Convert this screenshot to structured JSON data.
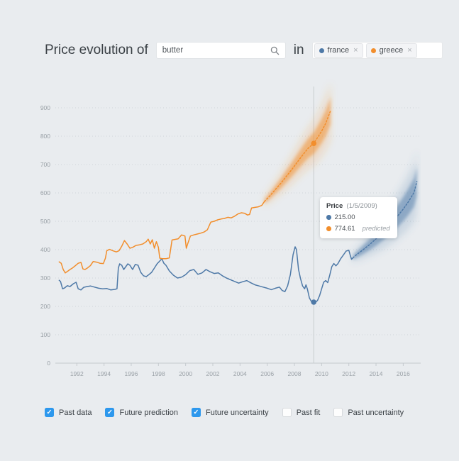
{
  "header": {
    "title": "Price evolution of",
    "search": {
      "value": "butter"
    },
    "preposition": "in",
    "tags": [
      {
        "label": "france",
        "color": "#4e79a7",
        "remove": "×"
      },
      {
        "label": "greece",
        "color": "#f28e2c",
        "remove": "×"
      }
    ]
  },
  "tooltip": {
    "title": "Price",
    "date": "(1/5/2009)",
    "rows": [
      {
        "color": "#4e79a7",
        "value": "215.00",
        "note": ""
      },
      {
        "color": "#f28e2c",
        "value": "774.61",
        "note": "predicted"
      }
    ]
  },
  "controls": [
    {
      "label": "Past data",
      "checked": true
    },
    {
      "label": "Future prediction",
      "checked": true
    },
    {
      "label": "Future uncertainty",
      "checked": true
    },
    {
      "label": "Past fit",
      "checked": false
    },
    {
      "label": "Past uncertainty",
      "checked": false
    }
  ],
  "chart_data": {
    "type": "line",
    "title": "",
    "xlabel": "",
    "ylabel": "",
    "grid": "dotted-horizontal",
    "x_ticks": [
      1992,
      1994,
      1996,
      1998,
      2000,
      2002,
      2004,
      2006,
      2008,
      2010,
      2012,
      2014,
      2016
    ],
    "y_ticks": [
      0,
      100,
      200,
      300,
      400,
      500,
      600,
      700,
      800,
      900
    ],
    "x_range": [
      1990.5,
      2017.3
    ],
    "y_range": [
      0,
      985
    ],
    "hover_x": 2009.42,
    "hover_date": "1/5/2009",
    "series": [
      {
        "name": "france-past",
        "color": "#4e79a7",
        "style": "solid",
        "points": [
          [
            1990.7,
            292
          ],
          [
            1990.8,
            288
          ],
          [
            1990.95,
            262
          ],
          [
            1991.1,
            265
          ],
          [
            1991.3,
            273
          ],
          [
            1991.5,
            270
          ],
          [
            1991.75,
            280
          ],
          [
            1991.95,
            285
          ],
          [
            1992.1,
            262
          ],
          [
            1992.3,
            258
          ],
          [
            1992.5,
            267
          ],
          [
            1992.75,
            270
          ],
          [
            1993.0,
            272
          ],
          [
            1993.3,
            268
          ],
          [
            1993.6,
            264
          ],
          [
            1993.9,
            262
          ],
          [
            1994.2,
            263
          ],
          [
            1994.5,
            258
          ],
          [
            1994.8,
            260
          ],
          [
            1994.95,
            262
          ],
          [
            1995.05,
            335
          ],
          [
            1995.15,
            350
          ],
          [
            1995.3,
            345
          ],
          [
            1995.45,
            330
          ],
          [
            1995.6,
            340
          ],
          [
            1995.75,
            350
          ],
          [
            1995.9,
            345
          ],
          [
            1996.1,
            330
          ],
          [
            1996.3,
            348
          ],
          [
            1996.5,
            345
          ],
          [
            1996.7,
            320
          ],
          [
            1996.9,
            308
          ],
          [
            1997.1,
            305
          ],
          [
            1997.3,
            312
          ],
          [
            1997.5,
            320
          ],
          [
            1997.7,
            335
          ],
          [
            1997.9,
            350
          ],
          [
            1998.1,
            360
          ],
          [
            1998.25,
            368
          ],
          [
            1998.4,
            352
          ],
          [
            1998.55,
            345
          ],
          [
            1998.8,
            325
          ],
          [
            1999.1,
            310
          ],
          [
            1999.4,
            300
          ],
          [
            1999.7,
            303
          ],
          [
            2000.0,
            312
          ],
          [
            2000.3,
            326
          ],
          [
            2000.6,
            330
          ],
          [
            2000.9,
            313
          ],
          [
            2001.2,
            318
          ],
          [
            2001.5,
            330
          ],
          [
            2001.8,
            322
          ],
          [
            2002.1,
            316
          ],
          [
            2002.4,
            318
          ],
          [
            2002.7,
            308
          ],
          [
            2003.0,
            300
          ],
          [
            2003.3,
            294
          ],
          [
            2003.6,
            288
          ],
          [
            2003.9,
            282
          ],
          [
            2004.2,
            287
          ],
          [
            2004.5,
            291
          ],
          [
            2004.8,
            283
          ],
          [
            2005.1,
            276
          ],
          [
            2005.4,
            272
          ],
          [
            2005.7,
            268
          ],
          [
            2006.0,
            264
          ],
          [
            2006.3,
            259
          ],
          [
            2006.6,
            264
          ],
          [
            2006.9,
            268
          ],
          [
            2007.1,
            256
          ],
          [
            2007.3,
            252
          ],
          [
            2007.5,
            272
          ],
          [
            2007.7,
            312
          ],
          [
            2007.9,
            382
          ],
          [
            2008.05,
            410
          ],
          [
            2008.15,
            400
          ],
          [
            2008.3,
            330
          ],
          [
            2008.45,
            298
          ],
          [
            2008.6,
            272
          ],
          [
            2008.75,
            262
          ],
          [
            2008.85,
            276
          ],
          [
            2008.95,
            262
          ],
          [
            2009.1,
            230
          ],
          [
            2009.25,
            217
          ],
          [
            2009.37,
            215
          ],
          [
            2009.55,
            214
          ],
          [
            2009.7,
            221
          ],
          [
            2009.85,
            238
          ],
          [
            2010.0,
            262
          ],
          [
            2010.15,
            285
          ],
          [
            2010.3,
            291
          ],
          [
            2010.45,
            284
          ],
          [
            2010.6,
            311
          ],
          [
            2010.75,
            340
          ],
          [
            2010.9,
            351
          ],
          [
            2011.05,
            343
          ],
          [
            2011.2,
            351
          ],
          [
            2011.4,
            368
          ],
          [
            2011.6,
            381
          ],
          [
            2011.8,
            395
          ],
          [
            2012.0,
            398
          ],
          [
            2012.1,
            381
          ],
          [
            2012.2,
            366
          ],
          [
            2012.3,
            371
          ]
        ]
      },
      {
        "name": "france-prediction",
        "color": "#4e79a7",
        "style": "dotted",
        "band_inner": [
          8,
          52
        ],
        "band_outer": [
          16,
          108
        ],
        "points": [
          [
            2012.3,
            371
          ],
          [
            2012.5,
            380
          ],
          [
            2013.0,
            398
          ],
          [
            2013.5,
            417
          ],
          [
            2014.0,
            438
          ],
          [
            2014.5,
            461
          ],
          [
            2015.0,
            486
          ],
          [
            2015.5,
            513
          ],
          [
            2016.0,
            543
          ],
          [
            2016.4,
            570
          ],
          [
            2016.8,
            602
          ],
          [
            2017.0,
            640
          ]
        ]
      },
      {
        "name": "greece-past",
        "color": "#f28e2c",
        "style": "solid",
        "points": [
          [
            1990.7,
            357
          ],
          [
            1990.85,
            352
          ],
          [
            1991.0,
            330
          ],
          [
            1991.15,
            318
          ],
          [
            1991.3,
            323
          ],
          [
            1991.5,
            330
          ],
          [
            1991.7,
            336
          ],
          [
            1991.9,
            344
          ],
          [
            1992.1,
            352
          ],
          [
            1992.3,
            355
          ],
          [
            1992.45,
            332
          ],
          [
            1992.6,
            330
          ],
          [
            1992.8,
            336
          ],
          [
            1993.0,
            344
          ],
          [
            1993.2,
            358
          ],
          [
            1993.45,
            356
          ],
          [
            1993.7,
            352
          ],
          [
            1993.95,
            351
          ],
          [
            1994.1,
            370
          ],
          [
            1994.2,
            396
          ],
          [
            1994.4,
            401
          ],
          [
            1994.65,
            396
          ],
          [
            1994.9,
            392
          ],
          [
            1995.1,
            396
          ],
          [
            1995.3,
            412
          ],
          [
            1995.5,
            432
          ],
          [
            1995.7,
            420
          ],
          [
            1995.9,
            405
          ],
          [
            1996.1,
            408
          ],
          [
            1996.35,
            415
          ],
          [
            1996.6,
            417
          ],
          [
            1996.85,
            420
          ],
          [
            1997.1,
            428
          ],
          [
            1997.25,
            437
          ],
          [
            1997.4,
            420
          ],
          [
            1997.55,
            435
          ],
          [
            1997.7,
            405
          ],
          [
            1997.85,
            428
          ],
          [
            1998.0,
            408
          ],
          [
            1998.1,
            370
          ],
          [
            1998.3,
            368
          ],
          [
            1998.55,
            368
          ],
          [
            1998.8,
            371
          ],
          [
            1999.0,
            434
          ],
          [
            1999.2,
            436
          ],
          [
            1999.45,
            438
          ],
          [
            1999.7,
            452
          ],
          [
            1999.95,
            448
          ],
          [
            2000.05,
            405
          ],
          [
            2000.15,
            420
          ],
          [
            2000.35,
            448
          ],
          [
            2000.6,
            452
          ],
          [
            2000.85,
            455
          ],
          [
            2001.1,
            458
          ],
          [
            2001.35,
            462
          ],
          [
            2001.6,
            470
          ],
          [
            2001.85,
            497
          ],
          [
            2002.1,
            500
          ],
          [
            2002.35,
            505
          ],
          [
            2002.6,
            508
          ],
          [
            2002.85,
            510
          ],
          [
            2003.1,
            514
          ],
          [
            2003.35,
            512
          ],
          [
            2003.6,
            518
          ],
          [
            2003.85,
            526
          ],
          [
            2004.1,
            530
          ],
          [
            2004.35,
            528
          ],
          [
            2004.55,
            522
          ],
          [
            2004.7,
            524
          ],
          [
            2004.85,
            547
          ],
          [
            2005.1,
            549
          ],
          [
            2005.35,
            551
          ],
          [
            2005.6,
            556
          ],
          [
            2005.8,
            570
          ]
        ]
      },
      {
        "name": "greece-prediction",
        "color": "#f28e2c",
        "style": "dotted",
        "band_inner": [
          8,
          48
        ],
        "band_outer": [
          16,
          100
        ],
        "points": [
          [
            2005.8,
            570
          ],
          [
            2006.2,
            590
          ],
          [
            2006.6,
            612
          ],
          [
            2007.0,
            634
          ],
          [
            2007.4,
            658
          ],
          [
            2007.8,
            682
          ],
          [
            2008.2,
            708
          ],
          [
            2008.6,
            733
          ],
          [
            2009.0,
            757
          ],
          [
            2009.42,
            775
          ],
          [
            2009.7,
            795
          ],
          [
            2010.0,
            818
          ],
          [
            2010.3,
            845
          ],
          [
            2010.66,
            890
          ]
        ]
      }
    ],
    "markers": [
      {
        "name": "france-hover-point",
        "x": 2009.42,
        "y": 215,
        "color": "#4e79a7"
      },
      {
        "name": "greece-hover-point",
        "x": 2009.42,
        "y": 774.61,
        "color": "#f28e2c"
      }
    ],
    "legend_position": "bottom"
  },
  "colors": {
    "background": "#e9ecef",
    "france": "#4e79a7",
    "greece": "#f28e2c",
    "checkbox": "#2d98ed",
    "grid": "#cfd4d8",
    "axis": "#c5cacе",
    "tick_label": "#9aa1a7",
    "hover_line": "#c7cbcf"
  }
}
